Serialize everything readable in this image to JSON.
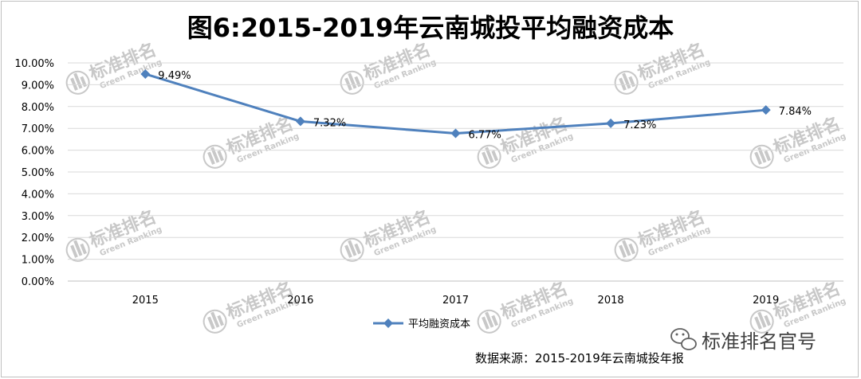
{
  "chart_data": {
    "type": "line",
    "title": "图6:2015-2019年云南城投平均融资成本",
    "categories": [
      "2015",
      "2016",
      "2017",
      "2018",
      "2019"
    ],
    "series": [
      {
        "name": "平均融资成本",
        "values": [
          9.49,
          7.32,
          6.77,
          7.23,
          7.84
        ],
        "color": "#4f81bd"
      }
    ],
    "data_labels": [
      "9.49%",
      "7.32%",
      "6.77%",
      "7.23%",
      "7.84%"
    ],
    "ylim": [
      0,
      10
    ],
    "yticks": [
      "0.00%",
      "1.00%",
      "2.00%",
      "3.00%",
      "4.00%",
      "5.00%",
      "6.00%",
      "7.00%",
      "8.00%",
      "9.00%",
      "10.00%"
    ],
    "grid": true,
    "legend": "bottom-center"
  },
  "source": "数据来源：2015-2019年云南城投年报",
  "brand": {
    "account": "标准排名官号",
    "icon": "wechat-icon"
  },
  "watermark": {
    "cn": "标准排名",
    "en": "Green Ranking"
  },
  "colors": {
    "line": "#4f81bd",
    "grid": "#d9d9d9",
    "watermark": "#c8c8c8"
  }
}
